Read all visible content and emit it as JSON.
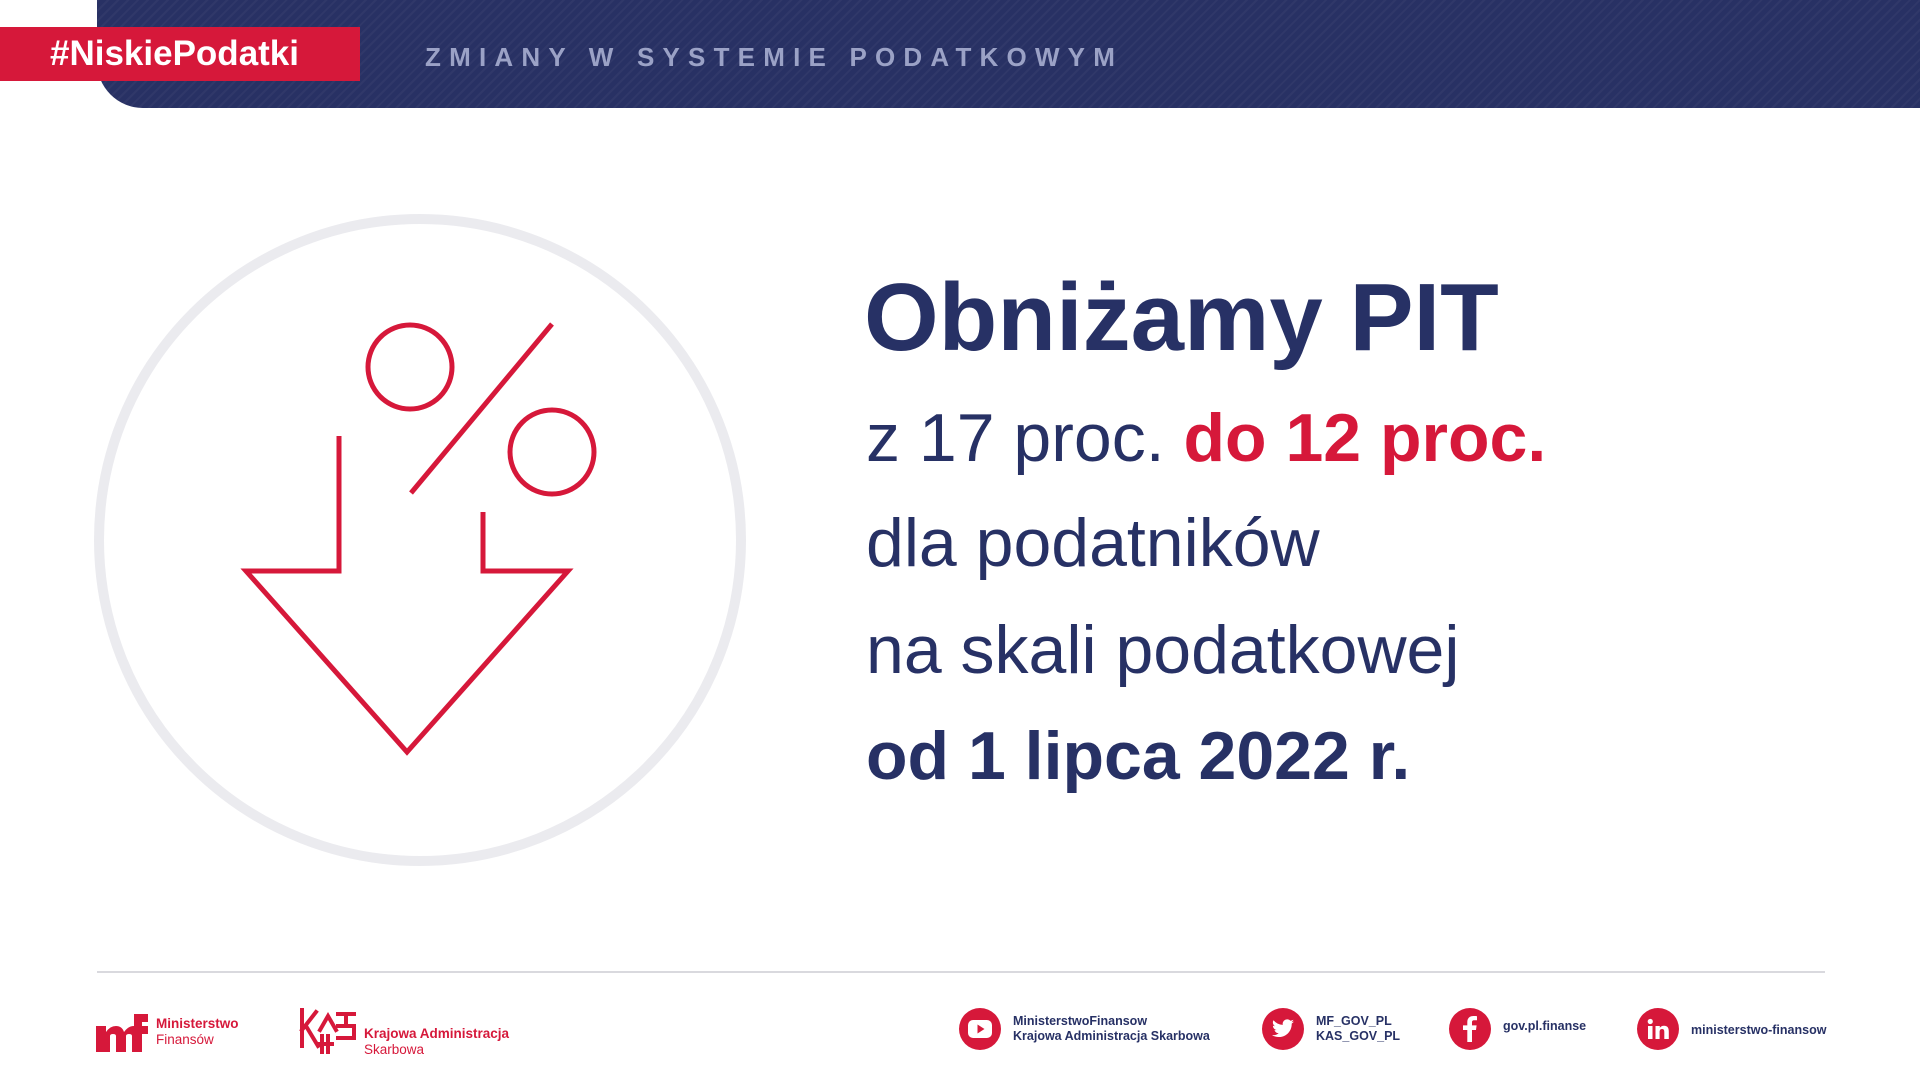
{
  "header": {
    "hashtag": "#NiskiePodatki",
    "title": "ZMIANY W SYSTEMIE PODATKOWYM"
  },
  "main": {
    "headline": "Obniżamy PIT",
    "line1_prefix": "z 17 proc. ",
    "line1_highlight": "do 12 proc.",
    "line2": "dla podatników",
    "line3": "na skali podatkowej",
    "line4": "od 1 lipca 2022 r."
  },
  "footer": {
    "mf_logo": {
      "line1": "Ministerstwo",
      "line2": "Finansów"
    },
    "kas_logo": {
      "line1": "Krajowa Administracja",
      "line2": "Skarbowa"
    },
    "social": [
      {
        "icon": "youtube-icon",
        "line1": "MinisterstwoFinansow",
        "line2": "Krajowa Administracja Skarbowa"
      },
      {
        "icon": "twitter-icon",
        "line1": "MF_GOV_PL",
        "line2": "KAS_GOV_PL"
      },
      {
        "icon": "facebook-icon",
        "line1": "gov.pl.finanse"
      },
      {
        "icon": "linkedin-icon",
        "line1": "ministerstwo-finansow"
      }
    ]
  },
  "colors": {
    "navy": "#273165",
    "red": "#d6183a",
    "header_text": "#9ba2c6",
    "circle_outline": "#ebebef"
  }
}
